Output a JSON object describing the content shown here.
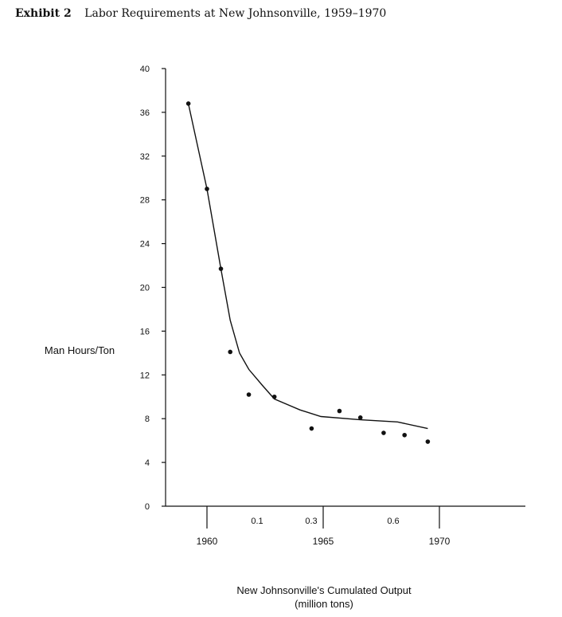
{
  "header": {
    "label": "Exhibit 2",
    "title": "Labor Requirements at New Johnsonville, 1959–1970"
  },
  "chart_data": {
    "type": "scatter",
    "title": "Labor Requirements at New Johnsonville, 1959–1970",
    "ylabel": "Man Hours/Ton",
    "xlabel_line1": "New Johnsonville's Cumulated Output",
    "xlabel_line2": "(million tons)",
    "ylim": [
      0,
      40
    ],
    "yticks": [
      0,
      4,
      8,
      12,
      16,
      20,
      24,
      28,
      32,
      36,
      40
    ],
    "x_output_ticks": [
      {
        "label": "0.1",
        "value": 0.1
      },
      {
        "label": "0.3",
        "value": 0.3
      },
      {
        "label": "0.6",
        "value": 0.6
      }
    ],
    "x_year_ticks": [
      {
        "label": "1960",
        "value": 1960
      },
      {
        "label": "1965",
        "value": 1965
      },
      {
        "label": "1970",
        "value": 1970
      }
    ],
    "grid": false,
    "points": [
      {
        "x": 1959.2,
        "y": 36.8
      },
      {
        "x": 1960.0,
        "y": 29.0
      },
      {
        "x": 1960.6,
        "y": 21.7
      },
      {
        "x": 1961.0,
        "y": 14.1
      },
      {
        "x": 1961.8,
        "y": 10.2
      },
      {
        "x": 1962.9,
        "y": 10.0
      },
      {
        "x": 1964.5,
        "y": 7.1
      },
      {
        "x": 1965.7,
        "y": 8.7
      },
      {
        "x": 1966.6,
        "y": 8.1
      },
      {
        "x": 1967.6,
        "y": 6.7
      },
      {
        "x": 1968.5,
        "y": 6.5
      },
      {
        "x": 1969.5,
        "y": 5.9
      }
    ],
    "trend_line": [
      {
        "x": 1959.2,
        "y": 36.8
      },
      {
        "x": 1960.0,
        "y": 29.0
      },
      {
        "x": 1960.6,
        "y": 21.7
      },
      {
        "x": 1961.0,
        "y": 17.0
      },
      {
        "x": 1961.4,
        "y": 14.0
      },
      {
        "x": 1961.8,
        "y": 12.5
      },
      {
        "x": 1962.4,
        "y": 11.0
      },
      {
        "x": 1962.9,
        "y": 9.8
      },
      {
        "x": 1964.0,
        "y": 8.8
      },
      {
        "x": 1964.9,
        "y": 8.2
      },
      {
        "x": 1966.6,
        "y": 7.9
      },
      {
        "x": 1968.2,
        "y": 7.7
      },
      {
        "x": 1969.5,
        "y": 7.1
      }
    ]
  }
}
